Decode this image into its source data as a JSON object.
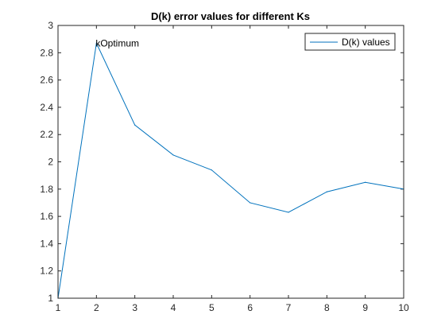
{
  "chart_data": {
    "type": "line",
    "title": "D(k) error values for different Ks",
    "xlabel": "",
    "ylabel": "",
    "x": [
      1,
      2,
      3,
      4,
      5,
      6,
      7,
      8,
      9,
      10
    ],
    "series": [
      {
        "name": "D(k) values",
        "values": [
          1.0,
          2.87,
          2.27,
          2.05,
          1.94,
          1.7,
          1.63,
          1.78,
          1.85,
          1.8
        ]
      }
    ],
    "xlim": [
      1,
      10
    ],
    "ylim": [
      1,
      3
    ],
    "xticks": [
      1,
      2,
      3,
      4,
      5,
      6,
      7,
      8,
      9,
      10
    ],
    "yticks": [
      1,
      1.2,
      1.4,
      1.6,
      1.8,
      2,
      2.2,
      2.4,
      2.6,
      2.8,
      3
    ],
    "xtick_labels": [
      "1",
      "2",
      "3",
      "4",
      "5",
      "6",
      "7",
      "8",
      "9",
      "10"
    ],
    "ytick_labels": [
      "1",
      "1.2",
      "1.4",
      "1.6",
      "1.8",
      "2",
      "2.2",
      "2.4",
      "2.6",
      "2.8",
      "3"
    ],
    "annotations": [
      {
        "text": "kOptimum",
        "x": 2,
        "y": 2.87
      }
    ],
    "legend_position": "top-right",
    "grid": false,
    "colors": {
      "line": "#0072BD",
      "axes": "#262626",
      "background": "#ffffff"
    }
  }
}
